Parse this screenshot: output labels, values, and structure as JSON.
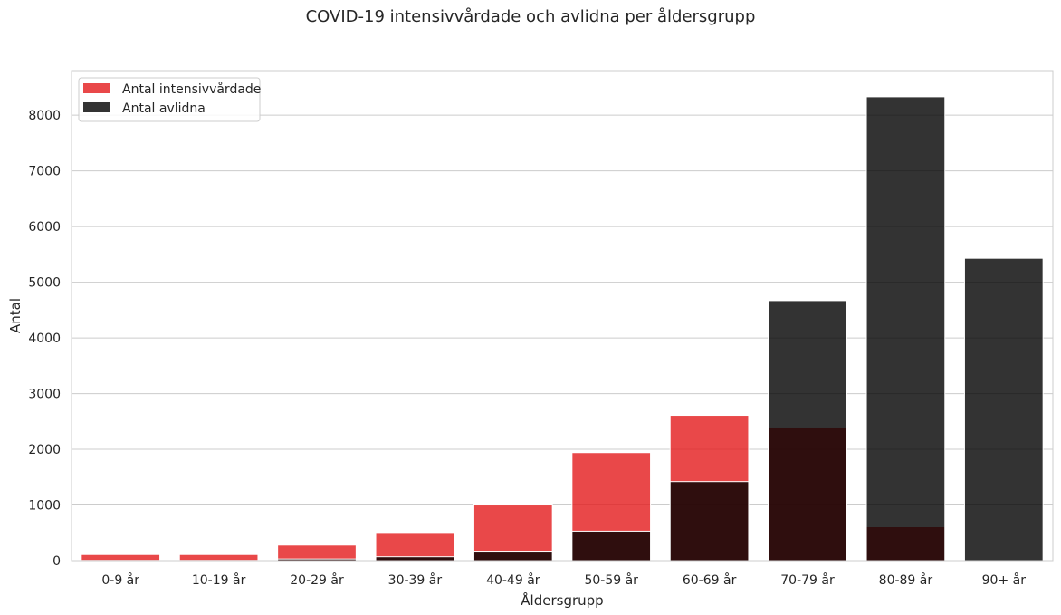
{
  "chart_data": {
    "type": "bar",
    "title": "COVID-19 intensivvårdade och avlidna per åldersgrupp",
    "xlabel": "Åldersgrupp",
    "ylabel": "Antal",
    "categories": [
      "0-9 år",
      "10-19 år",
      "20-29 år",
      "30-39 år",
      "40-49 år",
      "50-59 år",
      "60-69 år",
      "70-79 år",
      "80-89 år",
      "90+ år"
    ],
    "series": [
      {
        "name": "Antal intensivvårdade",
        "color": "#e41a1c",
        "values": [
          110,
          110,
          280,
          490,
          1000,
          1940,
          2610,
          2400,
          610,
          10
        ]
      },
      {
        "name": "Antal avlidna",
        "color": "#000000",
        "values": [
          5,
          5,
          30,
          70,
          170,
          530,
          1420,
          4670,
          8330,
          5430
        ]
      }
    ],
    "ylim": [
      0,
      8800
    ],
    "yticks": [
      0,
      1000,
      2000,
      3000,
      4000,
      5000,
      6000,
      7000,
      8000
    ],
    "grid": true,
    "legend_position": "top-left",
    "overlay": true
  }
}
